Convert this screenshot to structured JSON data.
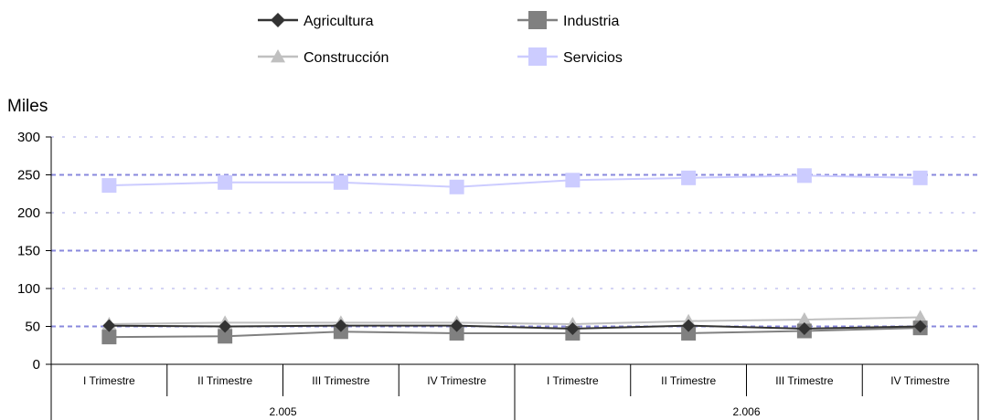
{
  "chart_data": {
    "type": "line",
    "ylabel": "Miles",
    "ylim": [
      0,
      300
    ],
    "yticks": [
      0,
      50,
      100,
      150,
      200,
      250,
      300
    ],
    "categories": [
      "I Trimestre",
      "II Trimestre",
      "III Trimestre",
      "IV Trimestre",
      "I Trimestre",
      "II Trimestre",
      "III Trimestre",
      "IV Trimestre"
    ],
    "groups": [
      {
        "label": "2.005",
        "span": 4
      },
      {
        "label": "2.006",
        "span": 4
      }
    ],
    "grid": true,
    "legend_position": "top",
    "series": [
      {
        "name": "Agricultura",
        "color": "#333333",
        "marker": "diamond",
        "values": [
          51,
          50,
          51,
          51,
          47,
          51,
          47,
          50
        ]
      },
      {
        "name": "Industria",
        "color": "#808080",
        "marker": "square",
        "values": [
          36,
          37,
          43,
          41,
          41,
          41,
          44,
          48
        ]
      },
      {
        "name": "Construcción",
        "color": "#C0C0C0",
        "marker": "triangle",
        "values": [
          53,
          55,
          55,
          55,
          53,
          57,
          59,
          62
        ]
      },
      {
        "name": "Servicios",
        "color": "#CCCCFF",
        "marker": "square",
        "values": [
          236,
          240,
          240,
          234,
          243,
          246,
          249,
          246
        ]
      }
    ]
  }
}
